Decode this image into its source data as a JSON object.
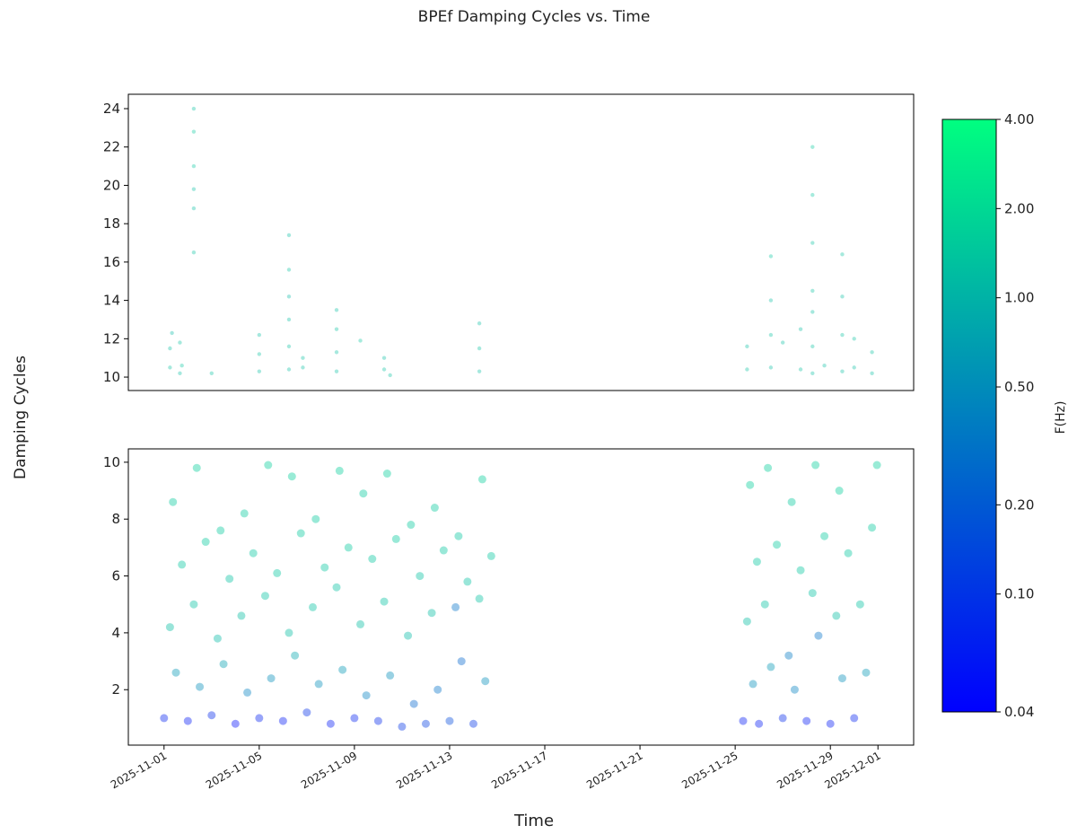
{
  "chart_data": [
    {
      "type": "scatter",
      "title": "BPEf Damping Cycles vs. Time",
      "ylabel": "Damping Cycles",
      "xlim": [
        "2025-10-30 12:00",
        "2025-12-02 12:00"
      ],
      "ylim": [
        9.3,
        24.75
      ],
      "yticks": [
        10,
        12,
        14,
        16,
        18,
        20,
        22,
        24
      ],
      "x": [
        "2025-11-01 06:00",
        "2025-11-01 06:00",
        "2025-11-01 08:00",
        "2025-11-01 16:00",
        "2025-11-01 16:00",
        "2025-11-01 18:00",
        "2025-11-02 06:00",
        "2025-11-02 06:00",
        "2025-11-02 06:00",
        "2025-11-02 06:00",
        "2025-11-02 06:00",
        "2025-11-02 06:00",
        "2025-11-03 00:00",
        "2025-11-05 00:00",
        "2025-11-05 00:00",
        "2025-11-05 00:00",
        "2025-11-06 06:00",
        "2025-11-06 06:00",
        "2025-11-06 06:00",
        "2025-11-06 06:00",
        "2025-11-06 06:00",
        "2025-11-06 06:00",
        "2025-11-06 20:00",
        "2025-11-06 20:00",
        "2025-11-08 06:00",
        "2025-11-08 06:00",
        "2025-11-08 06:00",
        "2025-11-08 06:00",
        "2025-11-09 06:00",
        "2025-11-10 06:00",
        "2025-11-10 06:00",
        "2025-11-10 12:00",
        "2025-11-14 06:00",
        "2025-11-14 06:00",
        "2025-11-14 06:00",
        "2025-11-25 12:00",
        "2025-11-25 12:00",
        "2025-11-26 12:00",
        "2025-11-26 12:00",
        "2025-11-26 12:00",
        "2025-11-26 12:00",
        "2025-11-27 00:00",
        "2025-11-27 18:00",
        "2025-11-27 18:00",
        "2025-11-28 06:00",
        "2025-11-28 06:00",
        "2025-11-28 06:00",
        "2025-11-28 06:00",
        "2025-11-28 06:00",
        "2025-11-28 06:00",
        "2025-11-28 06:00",
        "2025-11-28 18:00",
        "2025-11-29 12:00",
        "2025-11-29 12:00",
        "2025-11-29 12:00",
        "2025-11-29 12:00",
        "2025-11-30 00:00",
        "2025-11-30 00:00",
        "2025-11-30 18:00",
        "2025-11-30 18:00"
      ],
      "y": [
        11.5,
        10.5,
        12.3,
        10.2,
        11.8,
        10.6,
        16.5,
        18.8,
        21.0,
        22.8,
        24.0,
        19.8,
        10.2,
        10.3,
        11.2,
        12.2,
        10.4,
        11.6,
        13.0,
        14.2,
        15.6,
        17.4,
        10.5,
        11.0,
        10.3,
        11.3,
        12.5,
        13.5,
        11.9,
        10.4,
        11.0,
        10.1,
        10.3,
        11.5,
        12.8,
        10.4,
        11.6,
        10.5,
        12.2,
        14.0,
        16.3,
        11.8,
        10.4,
        12.5,
        10.2,
        11.6,
        13.4,
        14.5,
        17.0,
        19.5,
        22.0,
        10.6,
        10.3,
        12.2,
        14.2,
        16.4,
        10.5,
        12.0,
        10.2,
        11.3
      ],
      "c": [
        1.2,
        1.3,
        1.1,
        1.2,
        1.3,
        1.4,
        1.3,
        1.2,
        1.4,
        1.5,
        1.3,
        1.2,
        1.3,
        1.2,
        1.3,
        1.2,
        1.2,
        1.3,
        1.2,
        1.1,
        1.3,
        1.2,
        1.2,
        1.3,
        1.2,
        1.2,
        1.3,
        1.2,
        1.4,
        1.3,
        1.2,
        1.3,
        1.2,
        1.3,
        1.2,
        1.3,
        1.2,
        1.2,
        1.3,
        1.2,
        1.4,
        1.2,
        1.3,
        1.2,
        1.2,
        1.3,
        1.2,
        1.3,
        1.3,
        1.4,
        1.5,
        1.2,
        1.2,
        1.3,
        1.2,
        1.3,
        1.2,
        1.3,
        1.2,
        1.3
      ]
    },
    {
      "type": "scatter",
      "xlabel": "Time",
      "xlim": [
        "2025-10-30 12:00",
        "2025-12-02 12:00"
      ],
      "xticks": [
        "2025-11-01",
        "2025-11-05",
        "2025-11-09",
        "2025-11-13",
        "2025-11-17",
        "2025-11-21",
        "2025-11-25",
        "2025-11-29",
        "2025-12-01"
      ],
      "ylim": [
        0.05,
        10.47
      ],
      "yticks": [
        2,
        4,
        6,
        8,
        10
      ],
      "colorbar": {
        "label": "F(Hz)",
        "log": true,
        "lim": [
          0.04,
          4
        ],
        "colors": [
          "#0000ff",
          "#00ff80"
        ],
        "ticks": [
          {
            "value": 0.04,
            "label": "0.04"
          },
          {
            "value": 0.1,
            "label": "0.10"
          },
          {
            "value": 0.2,
            "label": "0.20"
          },
          {
            "value": 0.5,
            "label": "0.50"
          },
          {
            "value": 1,
            "label": "1.00"
          },
          {
            "value": 2,
            "label": "2.00"
          },
          {
            "value": 4,
            "label": "4.00"
          }
        ]
      },
      "x": [
        "2025-11-01 00:00",
        "2025-11-01 06:00",
        "2025-11-01 09:00",
        "2025-11-01 12:00",
        "2025-11-01 18:00",
        "2025-11-02 00:00",
        "2025-11-02 06:00",
        "2025-11-02 09:00",
        "2025-11-02 12:00",
        "2025-11-02 18:00",
        "2025-11-03 00:00",
        "2025-11-03 06:00",
        "2025-11-03 09:00",
        "2025-11-03 12:00",
        "2025-11-03 18:00",
        "2025-11-04 00:00",
        "2025-11-04 06:00",
        "2025-11-04 09:00",
        "2025-11-04 12:00",
        "2025-11-04 18:00",
        "2025-11-05 00:00",
        "2025-11-05 06:00",
        "2025-11-05 09:00",
        "2025-11-05 12:00",
        "2025-11-05 18:00",
        "2025-11-06 00:00",
        "2025-11-06 06:00",
        "2025-11-06 09:00",
        "2025-11-06 12:00",
        "2025-11-06 18:00",
        "2025-11-07 00:00",
        "2025-11-07 06:00",
        "2025-11-07 09:00",
        "2025-11-07 12:00",
        "2025-11-07 18:00",
        "2025-11-08 00:00",
        "2025-11-08 06:00",
        "2025-11-08 09:00",
        "2025-11-08 12:00",
        "2025-11-08 18:00",
        "2025-11-09 00:00",
        "2025-11-09 06:00",
        "2025-11-09 09:00",
        "2025-11-09 12:00",
        "2025-11-09 18:00",
        "2025-11-10 00:00",
        "2025-11-10 06:00",
        "2025-11-10 09:00",
        "2025-11-10 12:00",
        "2025-11-10 18:00",
        "2025-11-11 00:00",
        "2025-11-11 06:00",
        "2025-11-11 09:00",
        "2025-11-11 12:00",
        "2025-11-11 18:00",
        "2025-11-12 00:00",
        "2025-11-12 06:00",
        "2025-11-12 09:00",
        "2025-11-12 12:00",
        "2025-11-12 18:00",
        "2025-11-13 00:00",
        "2025-11-13 06:00",
        "2025-11-13 09:00",
        "2025-11-13 12:00",
        "2025-11-13 18:00",
        "2025-11-14 00:00",
        "2025-11-14 06:00",
        "2025-11-14 09:00",
        "2025-11-14 12:00",
        "2025-11-14 18:00",
        "2025-11-25 08:00",
        "2025-11-25 12:00",
        "2025-11-25 15:00",
        "2025-11-25 18:00",
        "2025-11-25 22:00",
        "2025-11-26 00:00",
        "2025-11-26 06:00",
        "2025-11-26 09:00",
        "2025-11-26 12:00",
        "2025-11-26 18:00",
        "2025-11-27 00:00",
        "2025-11-27 06:00",
        "2025-11-27 09:00",
        "2025-11-27 12:00",
        "2025-11-27 18:00",
        "2025-11-28 00:00",
        "2025-11-28 06:00",
        "2025-11-28 09:00",
        "2025-11-28 12:00",
        "2025-11-28 18:00",
        "2025-11-29 00:00",
        "2025-11-29 06:00",
        "2025-11-29 09:00",
        "2025-11-29 12:00",
        "2025-11-29 18:00",
        "2025-11-30 00:00",
        "2025-11-30 06:00",
        "2025-11-30 12:00",
        "2025-11-30 18:00",
        "2025-11-30 23:00"
      ],
      "y": [
        1.0,
        4.2,
        8.6,
        2.6,
        6.4,
        0.9,
        5.0,
        9.8,
        2.1,
        7.2,
        1.1,
        3.8,
        7.6,
        2.9,
        5.9,
        0.8,
        4.6,
        8.2,
        1.9,
        6.8,
        1.0,
        5.3,
        9.9,
        2.4,
        6.1,
        0.9,
        4.0,
        9.5,
        3.2,
        7.5,
        1.2,
        4.9,
        8.0,
        2.2,
        6.3,
        0.8,
        5.6,
        9.7,
        2.7,
        7.0,
        1.0,
        4.3,
        8.9,
        1.8,
        6.6,
        0.9,
        5.1,
        9.6,
        2.5,
        7.3,
        0.7,
        3.9,
        7.8,
        1.5,
        6.0,
        0.8,
        4.7,
        8.4,
        2.0,
        6.9,
        0.9,
        4.9,
        7.4,
        3.0,
        5.8,
        0.8,
        5.2,
        9.4,
        2.3,
        6.7,
        0.9,
        4.4,
        9.2,
        2.2,
        6.5,
        0.8,
        5.0,
        9.8,
        2.8,
        7.1,
        1.0,
        3.2,
        8.6,
        2.0,
        6.2,
        0.9,
        5.4,
        9.9,
        3.9,
        7.4,
        0.8,
        4.6,
        9.0,
        2.4,
        6.8,
        1.0,
        5.0,
        2.6,
        7.7,
        9.9
      ],
      "c": [
        0.07,
        1.2,
        1.5,
        0.6,
        1.4,
        0.06,
        1.3,
        1.6,
        0.5,
        1.5,
        0.08,
        1.1,
        1.5,
        0.7,
        1.3,
        0.05,
        1.2,
        1.5,
        0.4,
        1.4,
        0.07,
        1.3,
        1.6,
        0.5,
        1.4,
        0.06,
        1.2,
        1.6,
        0.8,
        1.5,
        0.09,
        1.3,
        1.5,
        0.5,
        1.4,
        0.06,
        1.3,
        1.6,
        0.6,
        1.5,
        0.07,
        1.2,
        1.5,
        0.4,
        1.4,
        0.08,
        1.3,
        1.6,
        0.5,
        1.5,
        0.1,
        1.1,
        1.5,
        0.25,
        1.3,
        0.12,
        1.2,
        1.5,
        0.3,
        1.4,
        0.15,
        0.3,
        1.4,
        0.25,
        1.3,
        0.1,
        1.3,
        1.6,
        0.5,
        1.4,
        0.06,
        1.2,
        1.6,
        0.5,
        1.4,
        0.06,
        1.3,
        1.6,
        0.6,
        1.5,
        0.08,
        0.35,
        1.5,
        0.4,
        1.4,
        0.06,
        1.3,
        1.6,
        0.3,
        1.5,
        0.06,
        1.2,
        1.6,
        0.5,
        1.4,
        0.07,
        1.3,
        0.6,
        1.5,
        1.6
      ]
    }
  ]
}
